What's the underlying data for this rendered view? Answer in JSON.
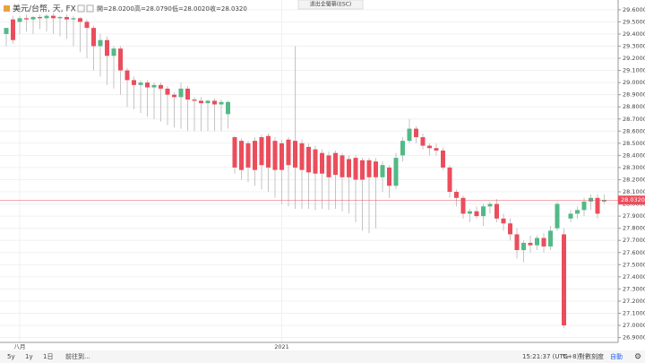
{
  "chart_data": {
    "type": "candlestick",
    "symbol": "美元/台幣, 天, FX",
    "ohlc_labels": [
      "開=28.0200",
      "高=28.0790",
      "低=28.0020",
      "收=28.0320"
    ],
    "categories": [
      null,
      null,
      "八月",
      null,
      null,
      null,
      null,
      null,
      null,
      null,
      null,
      null,
      null,
      null,
      null,
      null,
      null,
      null,
      null,
      null,
      null,
      null,
      null,
      null,
      null,
      null,
      null,
      null,
      null,
      null,
      null,
      null,
      null,
      null,
      null,
      null,
      null,
      null,
      null,
      null,
      null,
      "2021",
      null,
      null,
      null,
      null,
      null,
      null,
      null,
      null,
      null,
      null,
      null,
      null,
      null,
      null,
      null,
      null,
      null,
      null,
      null,
      null,
      null,
      null,
      null,
      null,
      null,
      null,
      null,
      null,
      null,
      null,
      null,
      null,
      null,
      null,
      null,
      null,
      null,
      null,
      null,
      null,
      null,
      null,
      null,
      null,
      null,
      null,
      null,
      null
    ],
    "open": [
      29.4,
      29.52,
      29.5,
      29.53,
      29.52,
      29.54,
      29.53,
      29.55,
      29.53,
      29.54,
      29.52,
      29.53,
      29.5,
      29.45,
      29.3,
      29.35,
      29.22,
      29.28,
      29.1,
      29.02,
      28.98,
      29.0,
      28.96,
      28.98,
      28.95,
      28.9,
      28.88,
      28.95,
      28.86,
      28.85,
      28.83,
      28.85,
      28.82,
      28.74,
      28.55,
      28.52,
      28.5,
      28.52,
      28.55,
      28.56,
      28.52,
      28.5,
      28.53,
      28.52,
      28.5,
      28.47,
      28.45,
      28.42,
      28.4,
      28.42,
      28.4,
      28.37,
      28.38,
      28.36,
      28.36,
      28.35,
      28.22,
      28.3,
      28.15,
      28.4,
      28.52,
      28.62,
      28.55,
      28.48,
      28.46,
      28.44,
      28.3,
      28.1,
      28.05,
      27.92,
      27.94,
      27.9,
      27.98,
      28.0,
      27.88,
      27.84,
      27.75,
      27.62,
      27.68,
      27.66,
      27.72,
      27.65,
      27.8,
      27.75,
      27.88,
      27.92,
      27.95,
      28.02,
      28.05,
      28.02
    ],
    "high": [
      29.45,
      29.55,
      29.55,
      29.56,
      29.55,
      29.56,
      29.56,
      29.57,
      29.55,
      29.56,
      29.55,
      29.54,
      29.52,
      29.47,
      29.4,
      29.38,
      29.3,
      29.3,
      29.12,
      29.05,
      29.02,
      29.02,
      29.0,
      29.0,
      28.97,
      28.92,
      29.0,
      28.97,
      28.88,
      28.88,
      28.86,
      28.87,
      28.86,
      28.85,
      28.56,
      28.54,
      28.52,
      28.55,
      28.57,
      28.58,
      28.55,
      28.53,
      28.55,
      29.3,
      28.53,
      28.5,
      28.48,
      28.45,
      28.43,
      28.44,
      28.42,
      28.4,
      28.4,
      28.38,
      28.38,
      28.38,
      28.35,
      28.32,
      28.42,
      28.55,
      28.7,
      28.64,
      28.58,
      28.5,
      28.5,
      28.46,
      28.32,
      28.12,
      28.07,
      27.96,
      27.98,
      28.0,
      28.02,
      28.04,
      27.92,
      27.88,
      27.8,
      27.7,
      27.74,
      27.74,
      27.76,
      27.82,
      28.02,
      27.8,
      27.95,
      27.98,
      28.05,
      28.08,
      28.08,
      28.079
    ],
    "low": [
      29.3,
      29.32,
      29.4,
      29.42,
      29.4,
      29.44,
      29.42,
      29.4,
      29.38,
      29.36,
      29.3,
      29.25,
      29.2,
      29.1,
      29.05,
      28.98,
      28.95,
      28.9,
      28.8,
      28.78,
      28.75,
      28.72,
      28.7,
      28.68,
      28.65,
      28.63,
      28.62,
      28.6,
      28.6,
      28.6,
      28.6,
      28.6,
      28.6,
      28.62,
      28.25,
      28.2,
      28.18,
      28.15,
      28.12,
      28.1,
      28.05,
      28.0,
      27.98,
      27.96,
      27.96,
      27.96,
      27.95,
      27.96,
      27.95,
      27.96,
      27.94,
      27.92,
      27.85,
      27.78,
      27.76,
      27.8,
      28.1,
      28.05,
      28.12,
      28.35,
      28.5,
      28.5,
      28.45,
      28.4,
      28.4,
      28.28,
      28.05,
      27.98,
      27.88,
      27.85,
      27.88,
      27.82,
      27.92,
      27.85,
      27.78,
      27.7,
      27.55,
      27.52,
      27.6,
      27.62,
      27.6,
      27.62,
      27.78,
      26.98,
      27.85,
      27.88,
      27.9,
      27.95,
      27.88,
      28.002
    ],
    "close": [
      29.45,
      29.35,
      29.53,
      29.52,
      29.54,
      29.53,
      29.55,
      29.53,
      29.54,
      29.52,
      29.53,
      29.5,
      29.45,
      29.3,
      29.35,
      29.22,
      29.28,
      29.1,
      29.02,
      28.98,
      29.0,
      28.96,
      28.98,
      28.95,
      28.9,
      28.88,
      28.95,
      28.86,
      28.85,
      28.83,
      28.85,
      28.82,
      28.84,
      28.84,
      28.3,
      28.28,
      28.3,
      28.28,
      28.32,
      28.3,
      28.28,
      28.28,
      28.32,
      28.3,
      28.28,
      28.26,
      28.25,
      28.25,
      28.22,
      28.24,
      28.22,
      28.22,
      28.2,
      28.2,
      28.22,
      28.22,
      28.32,
      28.15,
      28.38,
      28.52,
      28.62,
      28.55,
      28.48,
      28.46,
      28.44,
      28.3,
      28.1,
      28.05,
      27.92,
      27.94,
      27.9,
      27.98,
      28.0,
      27.88,
      27.84,
      27.75,
      27.62,
      27.68,
      27.66,
      27.72,
      27.65,
      27.78,
      28.0,
      27.0,
      27.92,
      27.95,
      28.02,
      28.05,
      27.92,
      28.032
    ],
    "up_color": "#53b987",
    "down_color": "#eb4d5c",
    "wick_color": "#c4c4c4",
    "ylim": [
      26.86,
      29.68
    ],
    "yticks": [
      {
        "value": 29.6,
        "label": "29.6000"
      },
      {
        "value": 29.5,
        "label": "29.5000"
      },
      {
        "value": 29.4,
        "label": "29.4000"
      },
      {
        "value": 29.3,
        "label": "29.3000"
      },
      {
        "value": 29.2,
        "label": "29.2000"
      },
      {
        "value": 29.1,
        "label": "29.1000"
      },
      {
        "value": 29.0,
        "label": "29.0000"
      },
      {
        "value": 28.9,
        "label": "28.9000"
      },
      {
        "value": 28.8,
        "label": "28.8000"
      },
      {
        "value": 28.7,
        "label": "28.7000"
      },
      {
        "value": 28.6,
        "label": "28.6000"
      },
      {
        "value": 28.5,
        "label": "28.5000"
      },
      {
        "value": 28.4,
        "label": "28.4000"
      },
      {
        "value": 28.3,
        "label": "28.3000"
      },
      {
        "value": 28.2,
        "label": "28.2000"
      },
      {
        "value": 28.1,
        "label": "28.1000"
      },
      {
        "value": 28.0,
        "label": "28.0000"
      },
      {
        "value": 27.9,
        "label": "27.9000"
      },
      {
        "value": 27.8,
        "label": "27.8000"
      },
      {
        "value": 27.7,
        "label": "27.7000"
      },
      {
        "value": 27.6,
        "label": "27.6000"
      },
      {
        "value": 27.5,
        "label": "27.5000"
      },
      {
        "value": 27.4,
        "label": "27.4000"
      },
      {
        "value": 27.3,
        "label": "27.3000"
      },
      {
        "value": 27.2,
        "label": "27.2000"
      },
      {
        "value": 27.1,
        "label": "27.1000"
      },
      {
        "value": 27.0,
        "label": "27.0000"
      },
      {
        "value": 26.9,
        "label": "26.9000"
      }
    ],
    "last_price": {
      "value": 28.032,
      "label": "28.0320"
    },
    "grid": true
  },
  "ui": {
    "fullscreen_hint": "退出全螢幕(ESC)",
    "toolbar_left": [
      "5y",
      "1y",
      "1日",
      "前往到..."
    ],
    "time": "15:21:37 (UTC+8)",
    "toolbar_right": [
      "%",
      "對數刻度",
      "自動"
    ]
  }
}
